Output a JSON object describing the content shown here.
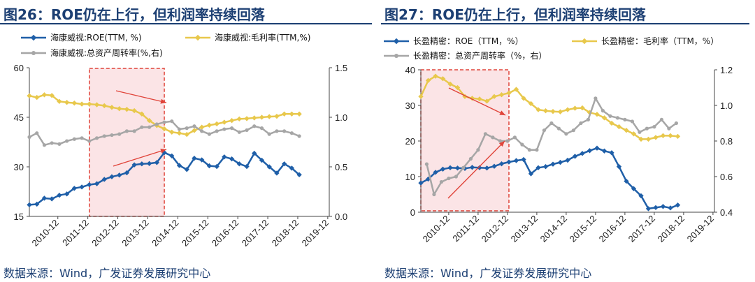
{
  "charts": {
    "left": {
      "title": "图26：ROE仍在上行，但利润率持续回落",
      "source": "数据来源：Wind，广发证券发展研究中心",
      "chart_data": {
        "type": "line",
        "title": "图26：ROE仍在上行，但利润率持续回落",
        "x_labels": [
          "2010-12",
          "2011-12",
          "2012-12",
          "2013-12",
          "2014-12",
          "2015-12",
          "2016-12",
          "2017-12",
          "2018-12",
          "2019-12"
        ],
        "y_left": {
          "min": 15,
          "max": 60,
          "ticks": [
            "15",
            "30",
            "45",
            "60"
          ]
        },
        "y_right": {
          "min": 0,
          "max": 1.5,
          "ticks": [
            "0.0",
            "0.5",
            "1.0",
            "1.5"
          ]
        },
        "highlight_range": [
          2012.0,
          2014.5
        ],
        "series": [
          {
            "name": "海康威视:ROE(TTM, %)",
            "color": "#1f5fa8",
            "axis": "left",
            "x_start": 2010.0,
            "x_step": 0.25,
            "values": [
              18.5,
              18.7,
              20.5,
              20.3,
              21.4,
              21.8,
              23.5,
              23.9,
              24.6,
              24.9,
              26.2,
              27.0,
              27.5,
              28.2,
              30.6,
              30.9,
              31.0,
              31.3,
              34.3,
              33.3,
              30.4,
              29.2,
              32.6,
              32.1,
              30.3,
              30.1,
              33.0,
              32.4,
              30.9,
              30.1,
              34.1,
              32.0,
              30.0,
              28.1,
              30.9,
              29.6,
              27.6
            ]
          },
          {
            "name": "海康威视:毛利率(TTM,%)",
            "color": "#e8c84c",
            "axis": "left",
            "x_start": 2010.0,
            "x_step": 0.25,
            "values": [
              51.5,
              51.0,
              51.8,
              51.6,
              49.8,
              49.5,
              49.3,
              49.0,
              49.0,
              48.8,
              48.5,
              48.0,
              47.6,
              47.4,
              47.0,
              46.0,
              44.0,
              42.5,
              41.5,
              40.5,
              40.2,
              39.8,
              41.0,
              42.0,
              42.6,
              43.0,
              43.5,
              44.0,
              44.5,
              44.6,
              44.8,
              45.0,
              45.2,
              45.3,
              46.0,
              46.0,
              46.0
            ]
          },
          {
            "name": "海康威视:总资产周转率(%,右)",
            "color": "#a6a6a6",
            "axis": "right",
            "x_start": 2010.0,
            "x_step": 0.25,
            "values": [
              0.8,
              0.84,
              0.72,
              0.74,
              0.73,
              0.76,
              0.78,
              0.79,
              0.76,
              0.79,
              0.81,
              0.82,
              0.83,
              0.86,
              0.86,
              0.9,
              0.9,
              0.93,
              0.95,
              0.96,
              0.88,
              0.89,
              0.91,
              0.86,
              0.83,
              0.86,
              0.88,
              0.89,
              0.85,
              0.87,
              0.91,
              0.89,
              0.83,
              0.86,
              0.86,
              0.84,
              0.81
            ]
          }
        ]
      }
    },
    "right": {
      "title": "图27：ROE仍在上行，但利润率持续回落",
      "source": "数据来源：Wind，广发证券发展研究中心",
      "chart_data": {
        "type": "line",
        "title": "图27：ROE仍在上行，但利润率持续回落",
        "x_labels": [
          "2010-12",
          "2011-12",
          "2012-12",
          "2013-12",
          "2014-12",
          "2015-12",
          "2016-12",
          "2017-12",
          "2018-12",
          "2019-12"
        ],
        "y_left": {
          "min": 0,
          "max": 40,
          "ticks": [
            "0",
            "10",
            "20",
            "30",
            "40"
          ]
        },
        "y_right": {
          "min": 0.4,
          "max": 1.2,
          "ticks": [
            "0.4",
            "0.6",
            "0.8",
            "1.0",
            "1.2"
          ]
        },
        "highlight_range": [
          2010.0,
          2013.0
        ],
        "series": [
          {
            "name": "长盈精密：ROE（TTM，%）",
            "color": "#1f5fa8",
            "axis": "left",
            "x_start": 2010.0,
            "x_step": 0.25,
            "values": [
              8.2,
              9.3,
              11.2,
              12.1,
              12.5,
              12.4,
              12.3,
              12.6,
              12.5,
              12.4,
              12.9,
              13.6,
              14.1,
              14.5,
              14.8,
              10.8,
              12.5,
              12.8,
              13.5,
              14.0,
              14.6,
              15.7,
              16.5,
              17.3,
              18.0,
              17.2,
              16.7,
              12.8,
              8.7,
              6.6,
              4.6,
              1.0,
              1.3,
              1.6,
              1.2,
              2.0
            ]
          },
          {
            "name": "长盈精密：毛利率（TTM，%）",
            "color": "#e8c84c",
            "axis": "left",
            "x_start": 2010.0,
            "x_step": 0.25,
            "values": [
              32.5,
              37.0,
              38.2,
              37.5,
              36.0,
              35.0,
              32.5,
              32.0,
              31.8,
              31.2,
              32.5,
              33.0,
              33.5,
              34.5,
              32.0,
              30.5,
              28.8,
              28.5,
              28.3,
              28.2,
              28.8,
              29.2,
              29.3,
              28.0,
              27.5,
              26.5,
              25.0,
              24.0,
              23.0,
              22.0,
              20.5,
              20.5,
              21.0,
              21.5,
              21.5,
              21.3
            ]
          },
          {
            "name": "长盈精密：总资产周转率（%，右）",
            "color": "#a6a6a6",
            "axis": "right",
            "x_start": 2010.2,
            "x_step": 0.25,
            "values": [
              0.67,
              0.5,
              0.57,
              0.59,
              0.6,
              0.65,
              0.7,
              0.75,
              0.84,
              0.82,
              0.8,
              0.8,
              0.82,
              0.78,
              0.75,
              0.75,
              0.86,
              0.9,
              0.87,
              0.84,
              0.86,
              0.9,
              0.92,
              1.04,
              0.97,
              0.94,
              0.93,
              0.92,
              0.91,
              0.85,
              0.87,
              0.88,
              0.92,
              0.87,
              0.9
            ]
          }
        ]
      }
    }
  }
}
